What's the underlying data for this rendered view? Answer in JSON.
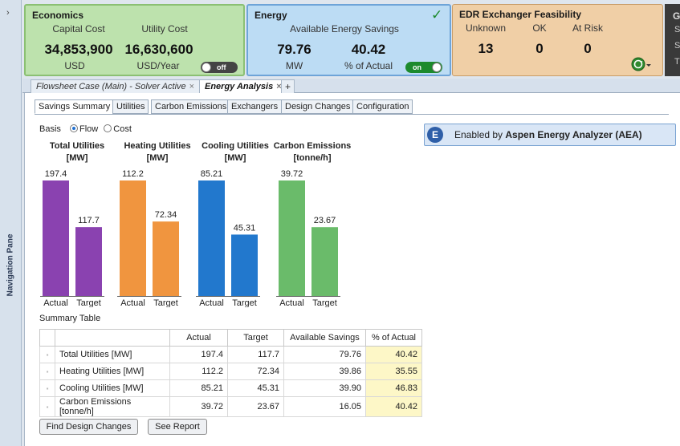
{
  "nav": {
    "label": "Navigation Pane",
    "chevron": "›"
  },
  "economics": {
    "title": "Economics",
    "capital_cost_label": "Capital Cost",
    "utility_cost_label": "Utility Cost",
    "capital_cost_value": "34,853,900",
    "utility_cost_value": "16,630,600",
    "capital_cost_unit": "USD",
    "utility_cost_unit": "USD/Year",
    "toggle_label": "off"
  },
  "energy": {
    "title": "Energy",
    "subtitle": "Available Energy Savings",
    "savings_value": "79.76",
    "savings_unit": "MW",
    "percent_value": "40.42",
    "percent_unit": "% of Actual",
    "toggle_label": "on",
    "check_glyph": "✓"
  },
  "edr": {
    "title": "EDR Exchanger Feasibility",
    "unknown_label": "Unknown",
    "ok_label": "OK",
    "atrisk_label": "At Risk",
    "unknown_value": "13",
    "ok_value": "0",
    "atrisk_value": "0"
  },
  "g_card": {
    "letter": "G",
    "side_letters": [
      "S",
      "S",
      "T"
    ]
  },
  "doc_tabs": [
    {
      "label": "Flowsheet Case (Main) - Solver Active"
    },
    {
      "label": "Energy Analysis"
    }
  ],
  "close_glyph": "×",
  "add_tab_glyph": "+",
  "subtabs": [
    "Savings Summary",
    "Utilities",
    "Carbon Emissions",
    "Exchangers",
    "Design Changes",
    "Configuration"
  ],
  "basis": {
    "label": "Basis",
    "options": [
      "Flow",
      "Cost"
    ],
    "selected": "Flow"
  },
  "aea": {
    "icon_letter": "E",
    "prefix": "Enabled by",
    "bold": "Aspen Energy Analyzer (AEA)"
  },
  "chart_data": {
    "type": "bar",
    "groups": [
      {
        "title": "Total Utilities",
        "unit": "[MW]",
        "color": "#8a42b0",
        "categories": [
          "Actual",
          "Target"
        ],
        "values": [
          197.4,
          117.7
        ],
        "labels": [
          "197.4",
          "117.7"
        ]
      },
      {
        "title": "Heating Utilities",
        "unit": "[MW]",
        "color": "#f0953f",
        "categories": [
          "Actual",
          "Target"
        ],
        "values": [
          112.2,
          72.34
        ],
        "labels": [
          "112.2",
          "72.34"
        ]
      },
      {
        "title": "Cooling Utilities",
        "unit": "[MW]",
        "color": "#2278cd",
        "categories": [
          "Actual",
          "Target"
        ],
        "values": [
          85.21,
          45.31
        ],
        "labels": [
          "85.21",
          "45.31"
        ]
      },
      {
        "title": "Carbon Emissions",
        "unit": "[tonne/h]",
        "color": "#6abb6a",
        "categories": [
          "Actual",
          "Target"
        ],
        "values": [
          39.72,
          23.67
        ],
        "labels": [
          "39.72",
          "23.67"
        ]
      }
    ]
  },
  "summary": {
    "label": "Summary Table",
    "columns": [
      "",
      "Actual",
      "Target",
      "Available Savings",
      "% of Actual"
    ],
    "rows": [
      {
        "name": "Total Utilities [MW]",
        "actual": "197.4",
        "target": "117.7",
        "savings": "79.76",
        "pct": "40.42"
      },
      {
        "name": "Heating Utilities [MW]",
        "actual": "112.2",
        "target": "72.34",
        "savings": "39.86",
        "pct": "35.55"
      },
      {
        "name": "Cooling Utilities [MW]",
        "actual": "85.21",
        "target": "45.31",
        "savings": "39.90",
        "pct": "46.83"
      },
      {
        "name": "Carbon Emissions [tonne/h]",
        "actual": "39.72",
        "target": "23.67",
        "savings": "16.05",
        "pct": "40.42"
      }
    ]
  },
  "buttons": {
    "find": "Find Design Changes",
    "report": "See Report"
  }
}
